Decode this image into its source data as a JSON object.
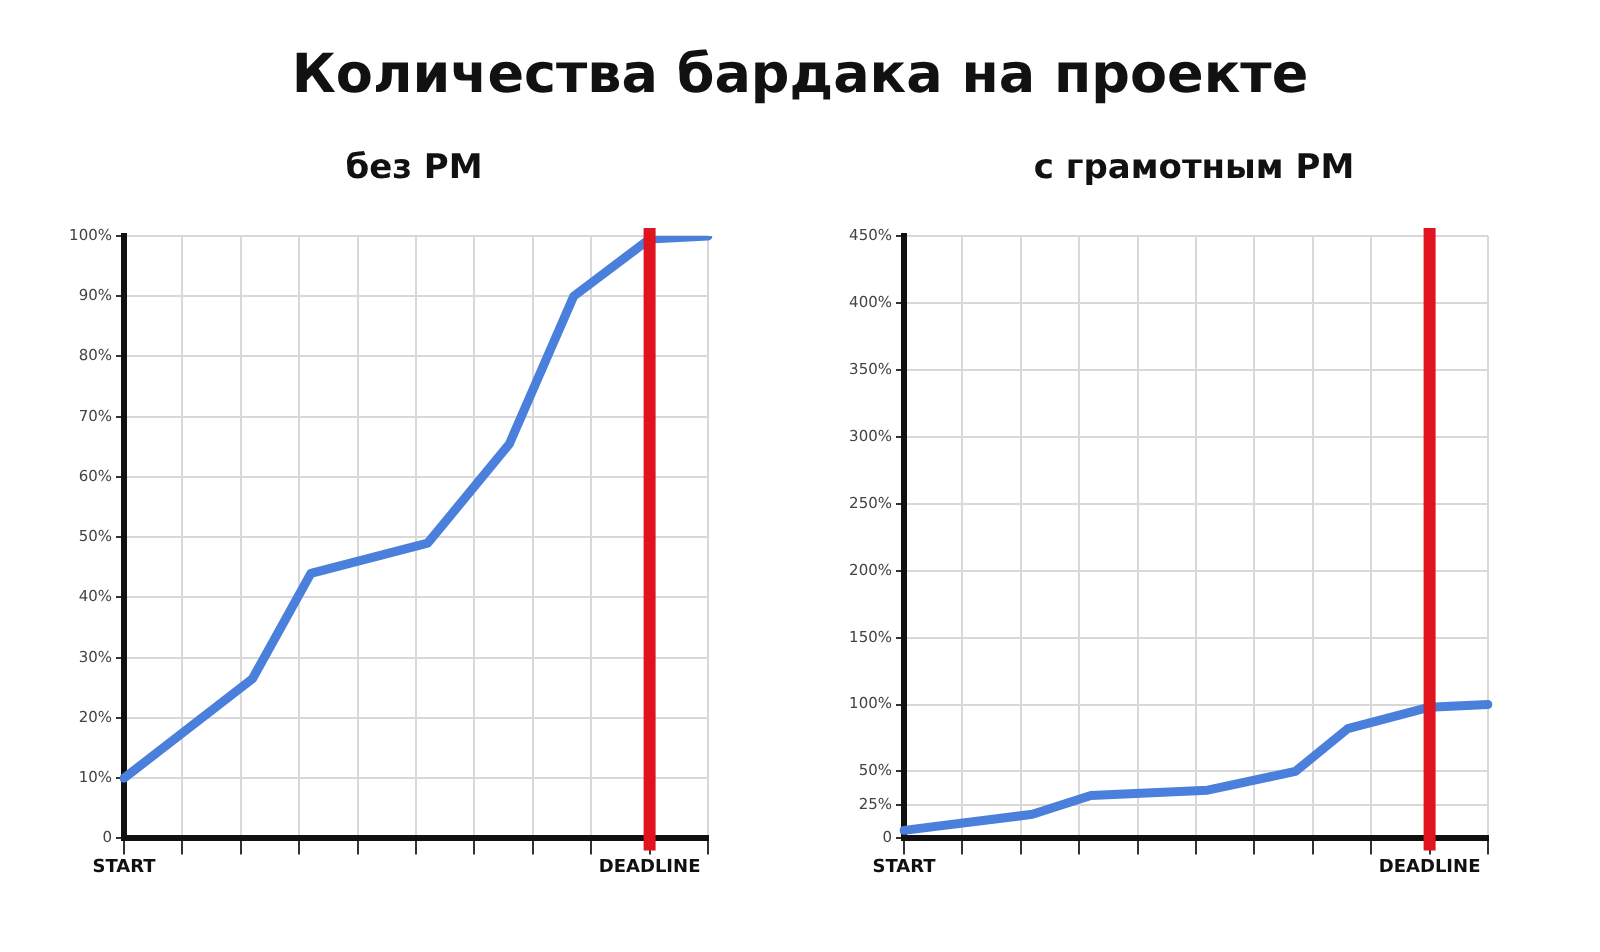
{
  "chart_data": [
    {
      "type": "line",
      "title": "Количества бардака на проекте",
      "subtitle": "без PM",
      "categories": [
        "START",
        null,
        null,
        null,
        null,
        null,
        null,
        null,
        null,
        null,
        null,
        null,
        null,
        null,
        null,
        null,
        null,
        null,
        null,
        null,
        null,
        null,
        null,
        null,
        null,
        null,
        null,
        null,
        null,
        null,
        null,
        null,
        null,
        null,
        null,
        null,
        null,
        null,
        null,
        null,
        null,
        null,
        null,
        null,
        null,
        null,
        null,
        null,
        null,
        null,
        null,
        null,
        null,
        null,
        null,
        null,
        null,
        null,
        null,
        null,
        null,
        null,
        null,
        null,
        null,
        null,
        null,
        null,
        null,
        null,
        null,
        null,
        null,
        null,
        null,
        null,
        null,
        null,
        null,
        null,
        null,
        null,
        null,
        null,
        null,
        null,
        null,
        null,
        null,
        null,
        "DEADLINE",
        null,
        null,
        null,
        null,
        null,
        null,
        null,
        null,
        null,
        null
      ],
      "series": [
        {
          "color": "#4a7fdc",
          "values": [
            10,
            null,
            null,
            null,
            null,
            null,
            null,
            null,
            null,
            null,
            null,
            null,
            null,
            null,
            null,
            null,
            null,
            null,
            null,
            null,
            null,
            null,
            26.5,
            null,
            null,
            null,
            null,
            null,
            null,
            null,
            null,
            null,
            44,
            null,
            null,
            null,
            null,
            null,
            null,
            null,
            null,
            null,
            null,
            null,
            null,
            null,
            null,
            null,
            null,
            null,
            null,
            null,
            49,
            null,
            null,
            null,
            null,
            null,
            null,
            null,
            null,
            null,
            null,
            null,
            null,
            null,
            65.5,
            null,
            null,
            null,
            null,
            null,
            null,
            null,
            null,
            null,
            null,
            90,
            null,
            null,
            null,
            null,
            null,
            null,
            null,
            null,
            null,
            null,
            null,
            null,
            99.5,
            null,
            null,
            null,
            null,
            null,
            null,
            null,
            null,
            null,
            100
          ]
        }
      ],
      "ylim": [
        0,
        100
      ],
      "yticks": [
        {
          "value": 0,
          "label": "0"
        },
        {
          "value": 10,
          "label": "10%"
        },
        {
          "value": 20,
          "label": "20%"
        },
        {
          "value": 30,
          "label": "30%"
        },
        {
          "value": 40,
          "label": "40%"
        },
        {
          "value": 50,
          "label": "50%"
        },
        {
          "value": 60,
          "label": "60%"
        },
        {
          "value": 70,
          "label": "70%"
        },
        {
          "value": 80,
          "label": "80%"
        },
        {
          "value": 90,
          "label": "90%"
        },
        {
          "value": 100,
          "label": "100%"
        }
      ],
      "ref_lines": [
        {
          "axis": "x",
          "value": "DEADLINE",
          "color": "#e0141e"
        }
      ],
      "grid": true,
      "legend": false,
      "marker": "none",
      "line_style": "solid"
    },
    {
      "type": "line",
      "subtitle": "с грамотным PM",
      "categories": [
        "START",
        null,
        null,
        null,
        null,
        null,
        null,
        null,
        null,
        null,
        null,
        null,
        null,
        null,
        null,
        null,
        null,
        null,
        null,
        null,
        null,
        null,
        null,
        null,
        null,
        null,
        null,
        null,
        null,
        null,
        null,
        null,
        null,
        null,
        null,
        null,
        null,
        null,
        null,
        null,
        null,
        null,
        null,
        null,
        null,
        null,
        null,
        null,
        null,
        null,
        null,
        null,
        null,
        null,
        null,
        null,
        null,
        null,
        null,
        null,
        null,
        null,
        null,
        null,
        null,
        null,
        null,
        null,
        null,
        null,
        null,
        null,
        null,
        null,
        null,
        null,
        null,
        null,
        null,
        null,
        null,
        null,
        null,
        null,
        null,
        null,
        null,
        null,
        null,
        null,
        "DEADLINE",
        null,
        null,
        null,
        null,
        null,
        null,
        null,
        null,
        null,
        null
      ],
      "series": [
        {
          "color": "#4a7fdc",
          "values": [
            6,
            null,
            null,
            null,
            null,
            null,
            null,
            null,
            null,
            null,
            null,
            null,
            null,
            null,
            null,
            null,
            null,
            null,
            null,
            null,
            null,
            null,
            18,
            null,
            null,
            null,
            null,
            null,
            null,
            null,
            null,
            null,
            32,
            null,
            null,
            null,
            null,
            null,
            null,
            null,
            null,
            null,
            null,
            null,
            null,
            null,
            null,
            null,
            null,
            null,
            null,
            null,
            36,
            null,
            null,
            null,
            null,
            null,
            null,
            null,
            null,
            null,
            null,
            null,
            null,
            null,
            null,
            50,
            null,
            null,
            null,
            null,
            null,
            null,
            null,
            null,
            82,
            null,
            null,
            null,
            null,
            null,
            null,
            null,
            null,
            null,
            null,
            null,
            null,
            null,
            98,
            null,
            null,
            null,
            null,
            null,
            null,
            null,
            null,
            null,
            100
          ]
        }
      ],
      "ylim": [
        0,
        450
      ],
      "yticks": [
        {
          "value": 0,
          "label": "0"
        },
        {
          "value": 25,
          "label": "25%"
        },
        {
          "value": 50,
          "label": "50%"
        },
        {
          "value": 100,
          "label": "100%"
        },
        {
          "value": 150,
          "label": "150%"
        },
        {
          "value": 200,
          "label": "200%"
        },
        {
          "value": 250,
          "label": "250%"
        },
        {
          "value": 300,
          "label": "300%"
        },
        {
          "value": 350,
          "label": "350%"
        },
        {
          "value": 400,
          "label": "400%"
        },
        {
          "value": 450,
          "label": "450%"
        }
      ],
      "ref_lines": [
        {
          "axis": "x",
          "value": "DEADLINE",
          "color": "#e0141e"
        }
      ],
      "grid": true,
      "legend": false,
      "marker": "none",
      "line_style": "solid"
    }
  ]
}
